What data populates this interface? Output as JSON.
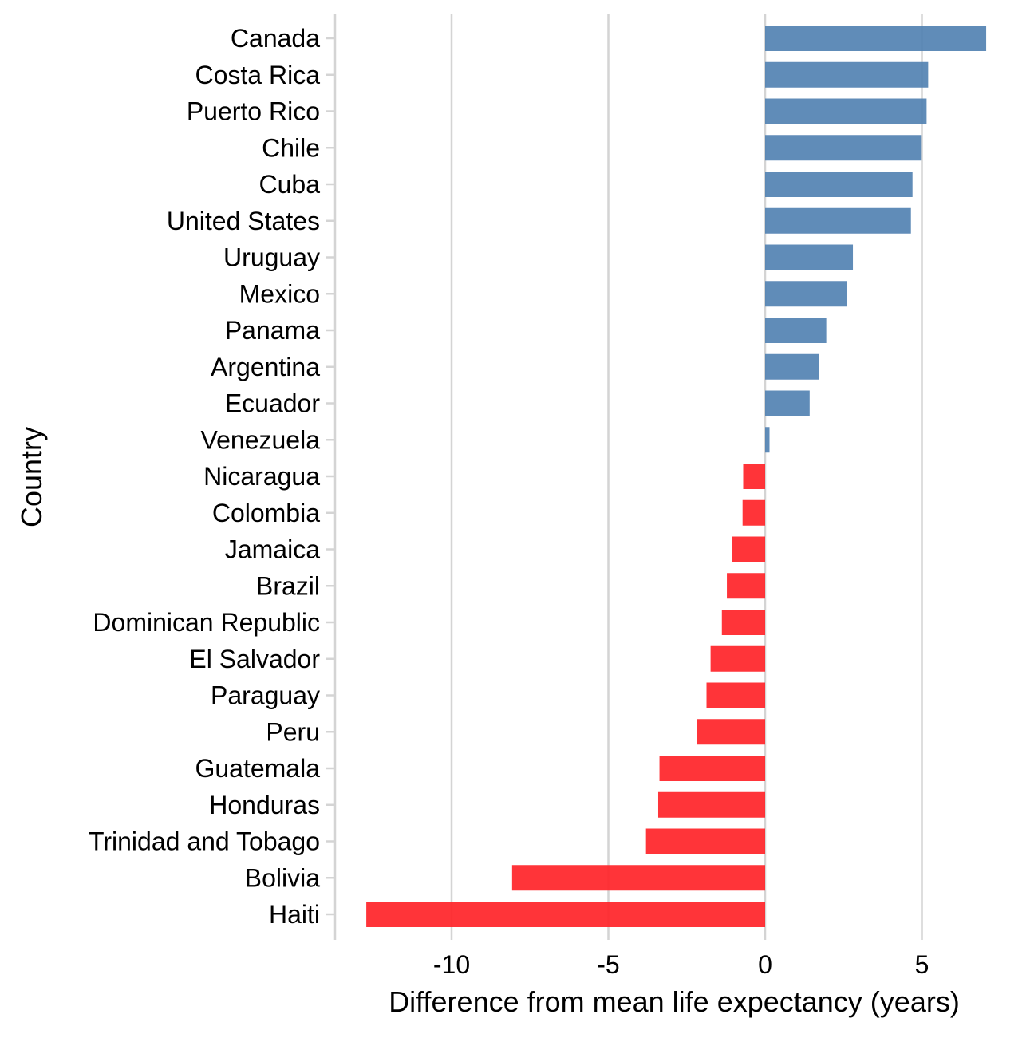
{
  "chart_data": {
    "type": "bar",
    "orientation": "horizontal",
    "title": "",
    "xlabel": "Difference from mean life expectancy (years)",
    "ylabel": "Country",
    "xlim": [
      -13.8,
      7.6
    ],
    "xticks": [
      -10,
      -5,
      0,
      5
    ],
    "xtick_labels": [
      "-10",
      "-5",
      "0",
      "5"
    ],
    "grid": "vertical major gridlines",
    "legend": "none",
    "colors": {
      "positive": "#4f7fb0",
      "negative": "#ff2328",
      "grid": "#d4d4d4"
    },
    "categories": [
      "Canada",
      "Costa Rica",
      "Puerto Rico",
      "Chile",
      "Cuba",
      "United States",
      "Uruguay",
      "Mexico",
      "Panama",
      "Argentina",
      "Ecuador",
      "Venezuela",
      "Nicaragua",
      "Colombia",
      "Jamaica",
      "Brazil",
      "Dominican Republic",
      "El Salvador",
      "Paraguay",
      "Peru",
      "Guatemala",
      "Honduras",
      "Trinidad and Tobago",
      "Bolivia",
      "Haiti"
    ],
    "values": [
      7.05,
      5.2,
      5.15,
      4.97,
      4.7,
      4.65,
      2.8,
      2.62,
      1.95,
      1.72,
      1.42,
      0.14,
      -0.7,
      -0.72,
      -1.05,
      -1.22,
      -1.38,
      -1.74,
      -1.87,
      -2.18,
      -3.37,
      -3.41,
      -3.8,
      -8.07,
      -12.72
    ]
  }
}
